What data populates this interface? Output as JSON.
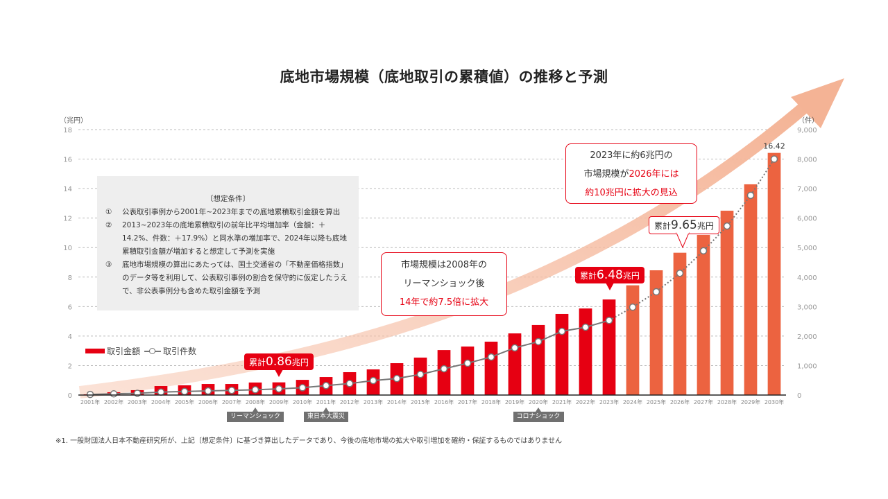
{
  "title": "底地市場規模（底地取引の累積値）の推移と予測",
  "chart_data": {
    "type": "bar+line",
    "title": "底地市場規模（底地取引の累積値）の推移と予測",
    "categories": [
      "2001年",
      "2002年",
      "2003年",
      "2004年",
      "2005年",
      "2006年",
      "2007年",
      "2008年",
      "2009年",
      "2010年",
      "2011年",
      "2012年",
      "2013年",
      "2014年",
      "2015年",
      "2016年",
      "2017年",
      "2018年",
      "2019年",
      "2020年",
      "2021年",
      "2022年",
      "2023年",
      "2024年",
      "2025年",
      "2026年",
      "2027年",
      "2028年",
      "2029年",
      "2030年"
    ],
    "forecast_start_index": 23,
    "series": [
      {
        "name": "取引金額",
        "type": "bar",
        "axis": "left",
        "color": "#e60012",
        "forecast_color": "#ec6340",
        "values": [
          0.05,
          0.19,
          0.33,
          0.61,
          0.66,
          0.75,
          0.75,
          0.85,
          0.86,
          1.03,
          1.22,
          1.55,
          1.74,
          2.16,
          2.54,
          3.05,
          3.29,
          3.62,
          4.18,
          4.75,
          5.5,
          5.87,
          6.48,
          7.44,
          8.46,
          9.65,
          10.86,
          12.5,
          14.29,
          16.42
        ]
      },
      {
        "name": "取引件数",
        "type": "line",
        "axis": "right",
        "color": "#777777",
        "values": [
          20,
          40,
          60,
          100,
          120,
          140,
          160,
          180,
          210,
          250,
          320,
          390,
          490,
          560,
          700,
          890,
          1080,
          1290,
          1600,
          1810,
          2160,
          2300,
          2530,
          2980,
          3500,
          4130,
          4890,
          5730,
          6770,
          8000
        ]
      }
    ],
    "ylabel_left": "（兆円）",
    "ylabel_right": "（件）",
    "ylim_left": [
      0,
      18
    ],
    "yticks_left": [
      "0",
      "2",
      "4",
      "6",
      "8",
      "10",
      "12",
      "14",
      "16",
      "18"
    ],
    "ylim_right": [
      0,
      9000
    ],
    "yticks_right": [
      "0",
      "1,000",
      "2,000",
      "3,000",
      "4,000",
      "5,000",
      "6,000",
      "7,000",
      "8,000",
      "9,000"
    ],
    "grid": true,
    "legend": [
      "取引金額",
      "取引件数"
    ],
    "legend_position": "middle-left",
    "data_labels": [
      {
        "index": 29,
        "text": "16.42"
      }
    ],
    "annotations": {
      "badge_2009": {
        "prefix": "累計",
        "value": "0.86",
        "unit": "兆円"
      },
      "badge_2023": {
        "prefix": "累計",
        "value": "6.48",
        "unit": "兆円"
      },
      "badge_2026": {
        "prefix": "累計",
        "value": "9.65",
        "unit": "兆円"
      },
      "events": [
        {
          "index": 7,
          "label": "リーマンショック"
        },
        {
          "index": 10,
          "label": "東日本大震災"
        },
        {
          "index": 19,
          "label": "コロナショック"
        }
      ]
    }
  },
  "conditions": {
    "title": "〔想定条件〕",
    "items": [
      {
        "num": "①",
        "text": "公表取引事例から2001年~2023年までの底地累積取引金額を算出"
      },
      {
        "num": "②",
        "text": "2013~2023年の底地累積取引の前年比平均増加率（金額：＋14.2%、件数：＋17.9%）と同水準の増加率で、2024年以降も底地累積取引金額が増加すると想定して予測を実施"
      },
      {
        "num": "③",
        "text": "底地市場規模の算出にあたっては、国土交通省の「不動産価格指数」のデータ等を利用して、公表取引事例の割合を保守的に仮定したうえで、非公表事例分も含めた取引金額を予測"
      }
    ]
  },
  "callout_lehman": {
    "line1": "市場規模は2008年の",
    "line2": "リーマンショック後",
    "line3": "14年で約7.5倍に拡大"
  },
  "callout_forecast": {
    "line1": "2023年に約6兆円の",
    "line2a": "市場規模が",
    "line2b": "2026年には",
    "line3": "約10兆円に拡大の見込"
  },
  "footnote": "※1.  一般財団法人日本不動産研究所が、上記〔想定条件〕に基づき算出したデータであり、今後の底地市場の拡大や取引増加を確約・保証するものではありません"
}
